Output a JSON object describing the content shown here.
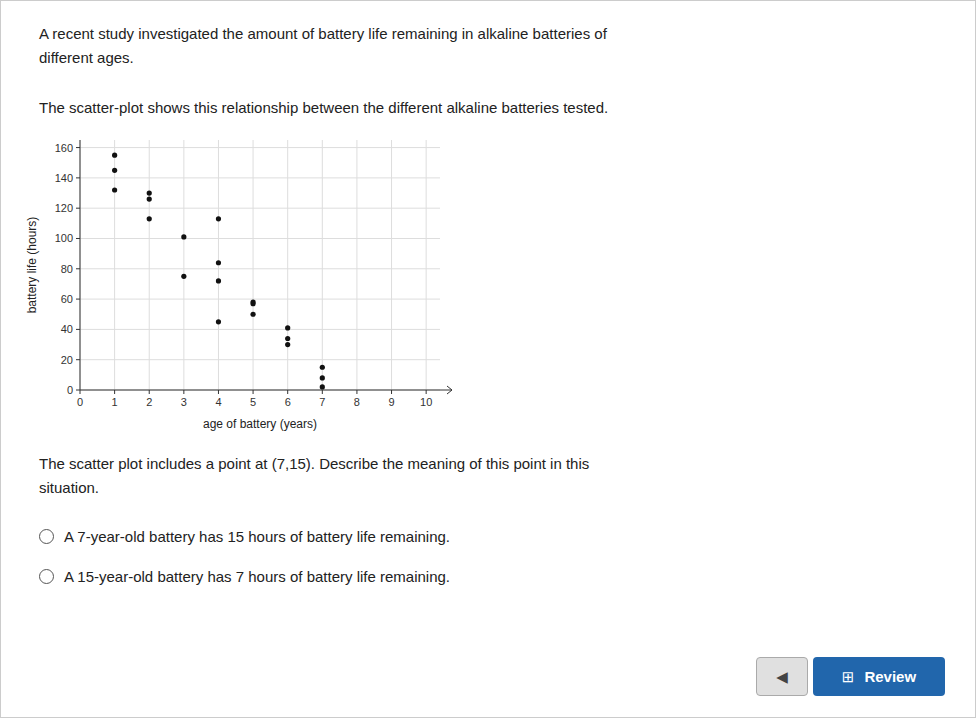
{
  "chart_data": {
    "type": "scatter",
    "x": [
      1,
      1,
      1,
      2,
      2,
      2,
      3,
      3,
      4,
      4,
      4,
      4,
      5,
      5,
      5,
      6,
      6,
      6,
      7,
      7,
      7
    ],
    "values": [
      155,
      145,
      132,
      130,
      126,
      113,
      101,
      75,
      113,
      84,
      72,
      45,
      58,
      57,
      50,
      41,
      34,
      30,
      15,
      8,
      2
    ],
    "xlim": [
      0,
      10.4
    ],
    "ylim": [
      0,
      165
    ],
    "xticks": [
      0,
      1,
      2,
      3,
      4,
      5,
      6,
      7,
      8,
      9,
      10
    ],
    "yticks": [
      0,
      20,
      40,
      60,
      80,
      100,
      120,
      140,
      160
    ],
    "x_label": "age of battery (years)",
    "y_label": "battery life (hours)",
    "color": "#111111",
    "grid": true
  },
  "text": {
    "paragraphs": [
      "A recent study investigated the amount of battery life remaining in alkaline batteries of\ndifferent ages.",
      "The scatter-plot shows this relationship between the different alkaline batteries tested."
    ],
    "question": "The scatter plot includes a point at (7,15). Describe the meaning of this point in this\nsituation.",
    "options": [
      "A 7-year-old battery has 15 hours of battery life remaining.",
      "A 15-year-old battery has 7 hours of battery life remaining."
    ],
    "back_button": "◀",
    "back_button_color": "#e0e0e0",
    "review_icon": "⊞",
    "review_button": "Review",
    "review_button_color": "#2166ac"
  }
}
